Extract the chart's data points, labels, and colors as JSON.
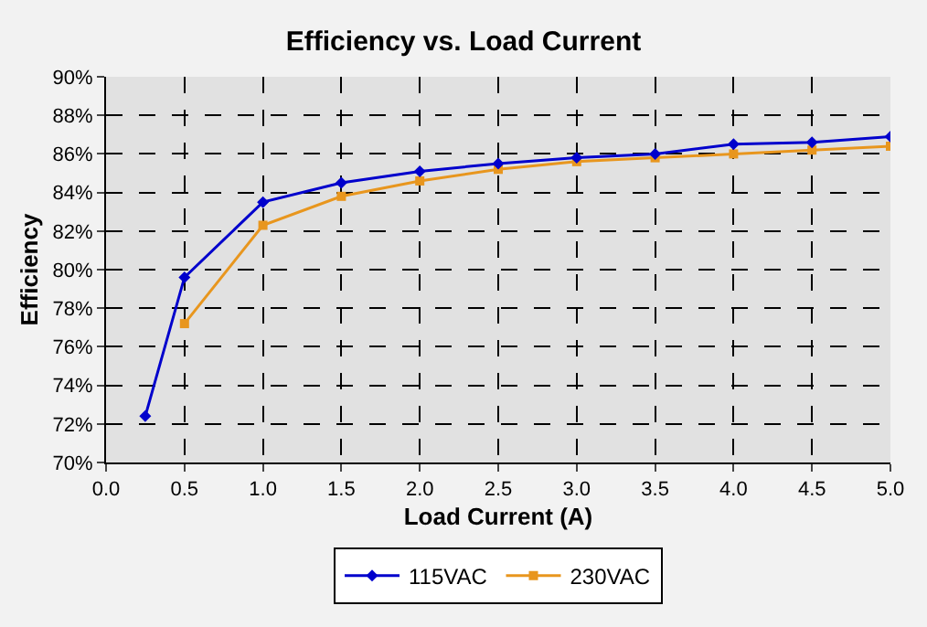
{
  "chart_data": {
    "type": "line",
    "title": "Efficiency vs. Load Current",
    "xlabel": "Load Current (A)",
    "ylabel": "Efficiency",
    "xlim": [
      0,
      5
    ],
    "xticks": [
      {
        "value": 0,
        "label": "0.0"
      },
      {
        "value": 0.5,
        "label": "0.5"
      },
      {
        "value": 1,
        "label": "1.0"
      },
      {
        "value": 1.5,
        "label": "1.5"
      },
      {
        "value": 2,
        "label": "2.0"
      },
      {
        "value": 2.5,
        "label": "2.5"
      },
      {
        "value": 3,
        "label": "3.0"
      },
      {
        "value": 3.5,
        "label": "3.5"
      },
      {
        "value": 4,
        "label": "4.0"
      },
      {
        "value": 4.5,
        "label": "4.5"
      },
      {
        "value": 5,
        "label": "5.0"
      }
    ],
    "ylim": [
      70,
      90
    ],
    "yticks": [
      {
        "value": 70,
        "label": "70%"
      },
      {
        "value": 72,
        "label": "72%"
      },
      {
        "value": 74,
        "label": "74%"
      },
      {
        "value": 76,
        "label": "76%"
      },
      {
        "value": 78,
        "label": "78%"
      },
      {
        "value": 80,
        "label": "80%"
      },
      {
        "value": 82,
        "label": "82%"
      },
      {
        "value": 84,
        "label": "84%"
      },
      {
        "value": 86,
        "label": "86%"
      },
      {
        "value": 88,
        "label": "88%"
      },
      {
        "value": 90,
        "label": "90%"
      }
    ],
    "grid": true,
    "legend": "bottom",
    "line_style": "solid",
    "series": [
      {
        "name": "115VAC",
        "color": "#0000cc",
        "marker": "diamond",
        "x": [
          0.25,
          0.5,
          1.0,
          1.5,
          2.0,
          2.5,
          3.0,
          3.5,
          4.0,
          4.5,
          5.0
        ],
        "values": [
          72.4,
          79.6,
          83.5,
          84.5,
          85.1,
          85.5,
          85.8,
          86.0,
          86.5,
          86.6,
          86.9
        ]
      },
      {
        "name": "230VAC",
        "color": "#e8961e",
        "marker": "square",
        "x": [
          0.5,
          1.0,
          1.5,
          2.0,
          2.5,
          3.0,
          3.5,
          4.0,
          4.5,
          5.0
        ],
        "values": [
          77.2,
          82.3,
          83.8,
          84.6,
          85.2,
          85.6,
          85.8,
          86.0,
          86.2,
          86.4
        ]
      }
    ]
  }
}
